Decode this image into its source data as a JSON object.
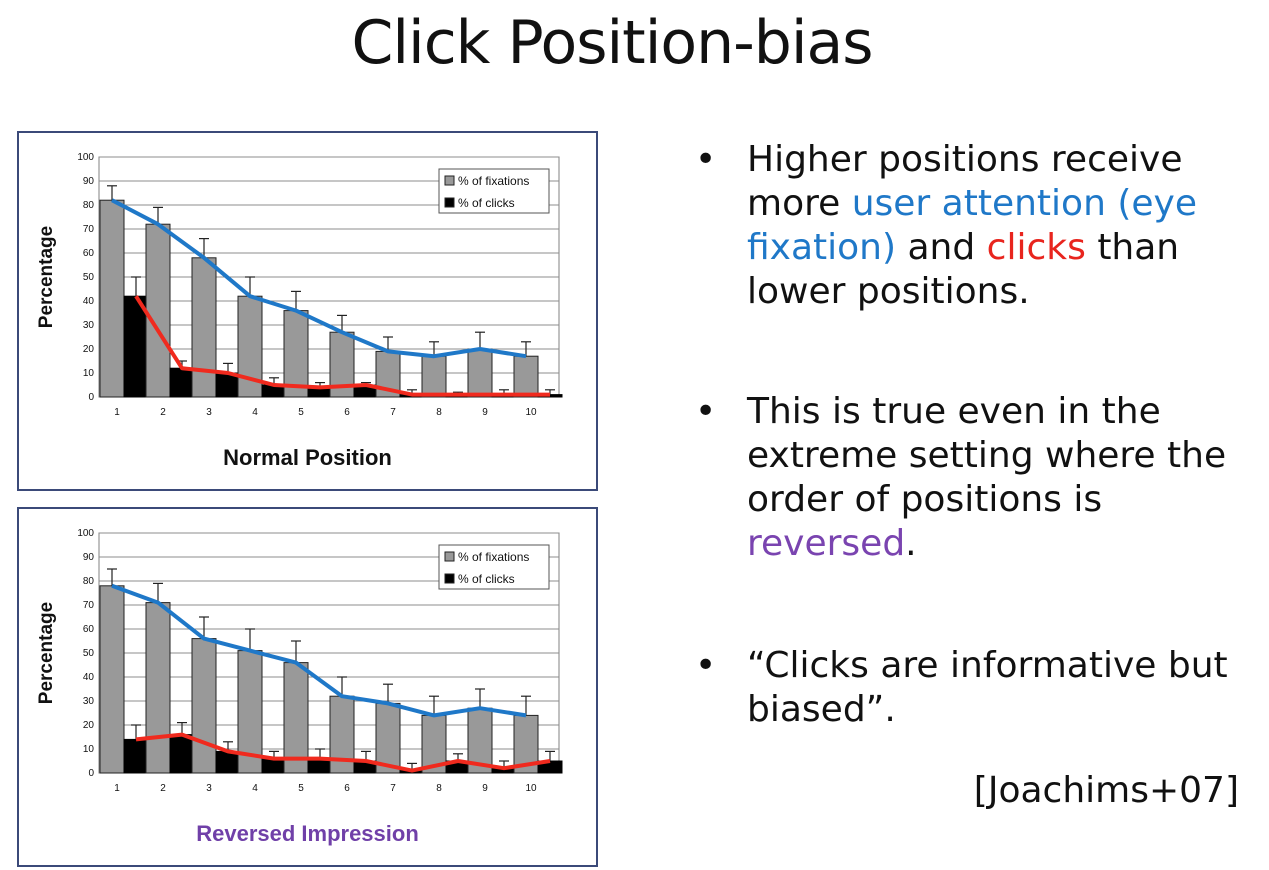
{
  "slide": {
    "title": "Click Position-bias",
    "bullets": [
      {
        "dot": "•",
        "parts": [
          {
            "text": "Higher positions receive more ",
            "color": "default"
          },
          {
            "text": "user attention (eye fixation)",
            "color": "blue"
          },
          {
            "text": " and ",
            "color": "default"
          },
          {
            "text": "clicks",
            "color": "red"
          },
          {
            "text": " than lower positions.",
            "color": "default"
          }
        ]
      },
      {
        "dot": "•",
        "parts": [
          {
            "text": "This is true even in the extreme setting where the order of positions is ",
            "color": "default"
          },
          {
            "text": "reversed",
            "color": "purple"
          },
          {
            "text": ".",
            "color": "default"
          }
        ]
      },
      {
        "dot": "•",
        "parts": [
          {
            "text": "“Clicks are informative but biased”.",
            "color": "default"
          }
        ]
      }
    ],
    "citation": "[Joachims+07]"
  },
  "chart_data": [
    {
      "type": "bar",
      "caption": "Normal Position",
      "ylabel": "Percentage",
      "ylim": [
        0,
        100
      ],
      "yticks": [
        0,
        10,
        20,
        30,
        40,
        50,
        60,
        70,
        80,
        90,
        100
      ],
      "categories": [
        "1",
        "2",
        "3",
        "4",
        "5",
        "6",
        "7",
        "8",
        "9",
        "10"
      ],
      "legend_position": "top-right",
      "series": [
        {
          "name": "% of fixations",
          "values": [
            82,
            72,
            58,
            42,
            36,
            27,
            19,
            17,
            20,
            17
          ],
          "error": [
            6,
            7,
            8,
            8,
            8,
            7,
            6,
            6,
            7,
            6
          ],
          "color": "#999999"
        },
        {
          "name": "% of clicks",
          "values": [
            42,
            12,
            10,
            5,
            4,
            5,
            1,
            1,
            1,
            1
          ],
          "error": [
            8,
            3,
            4,
            3,
            2,
            1,
            2,
            1,
            2,
            2
          ],
          "color": "#000000"
        }
      ],
      "trend_lines": [
        {
          "series": "% of fixations",
          "color": "#1f78c8"
        },
        {
          "series": "% of clicks",
          "color": "#f02a1e"
        }
      ],
      "grid": true
    },
    {
      "type": "bar",
      "caption": "Reversed Impression",
      "ylabel": "Percentage",
      "ylim": [
        0,
        100
      ],
      "yticks": [
        0,
        10,
        20,
        30,
        40,
        50,
        60,
        70,
        80,
        90,
        100
      ],
      "categories": [
        "1",
        "2",
        "3",
        "4",
        "5",
        "6",
        "7",
        "8",
        "9",
        "10"
      ],
      "legend_position": "top-right",
      "series": [
        {
          "name": "% of fixations",
          "values": [
            78,
            71,
            56,
            51,
            46,
            32,
            29,
            24,
            27,
            24
          ],
          "error": [
            7,
            8,
            9,
            9,
            9,
            8,
            8,
            8,
            8,
            8
          ],
          "color": "#999999"
        },
        {
          "name": "% of clicks",
          "values": [
            14,
            16,
            9,
            6,
            6,
            5,
            1,
            5,
            2,
            5
          ],
          "error": [
            6,
            5,
            4,
            3,
            4,
            4,
            3,
            3,
            3,
            4
          ],
          "color": "#000000"
        }
      ],
      "trend_lines": [
        {
          "series": "% of fixations",
          "color": "#1f78c8"
        },
        {
          "series": "% of clicks",
          "color": "#f02a1e"
        }
      ],
      "grid": true
    }
  ]
}
